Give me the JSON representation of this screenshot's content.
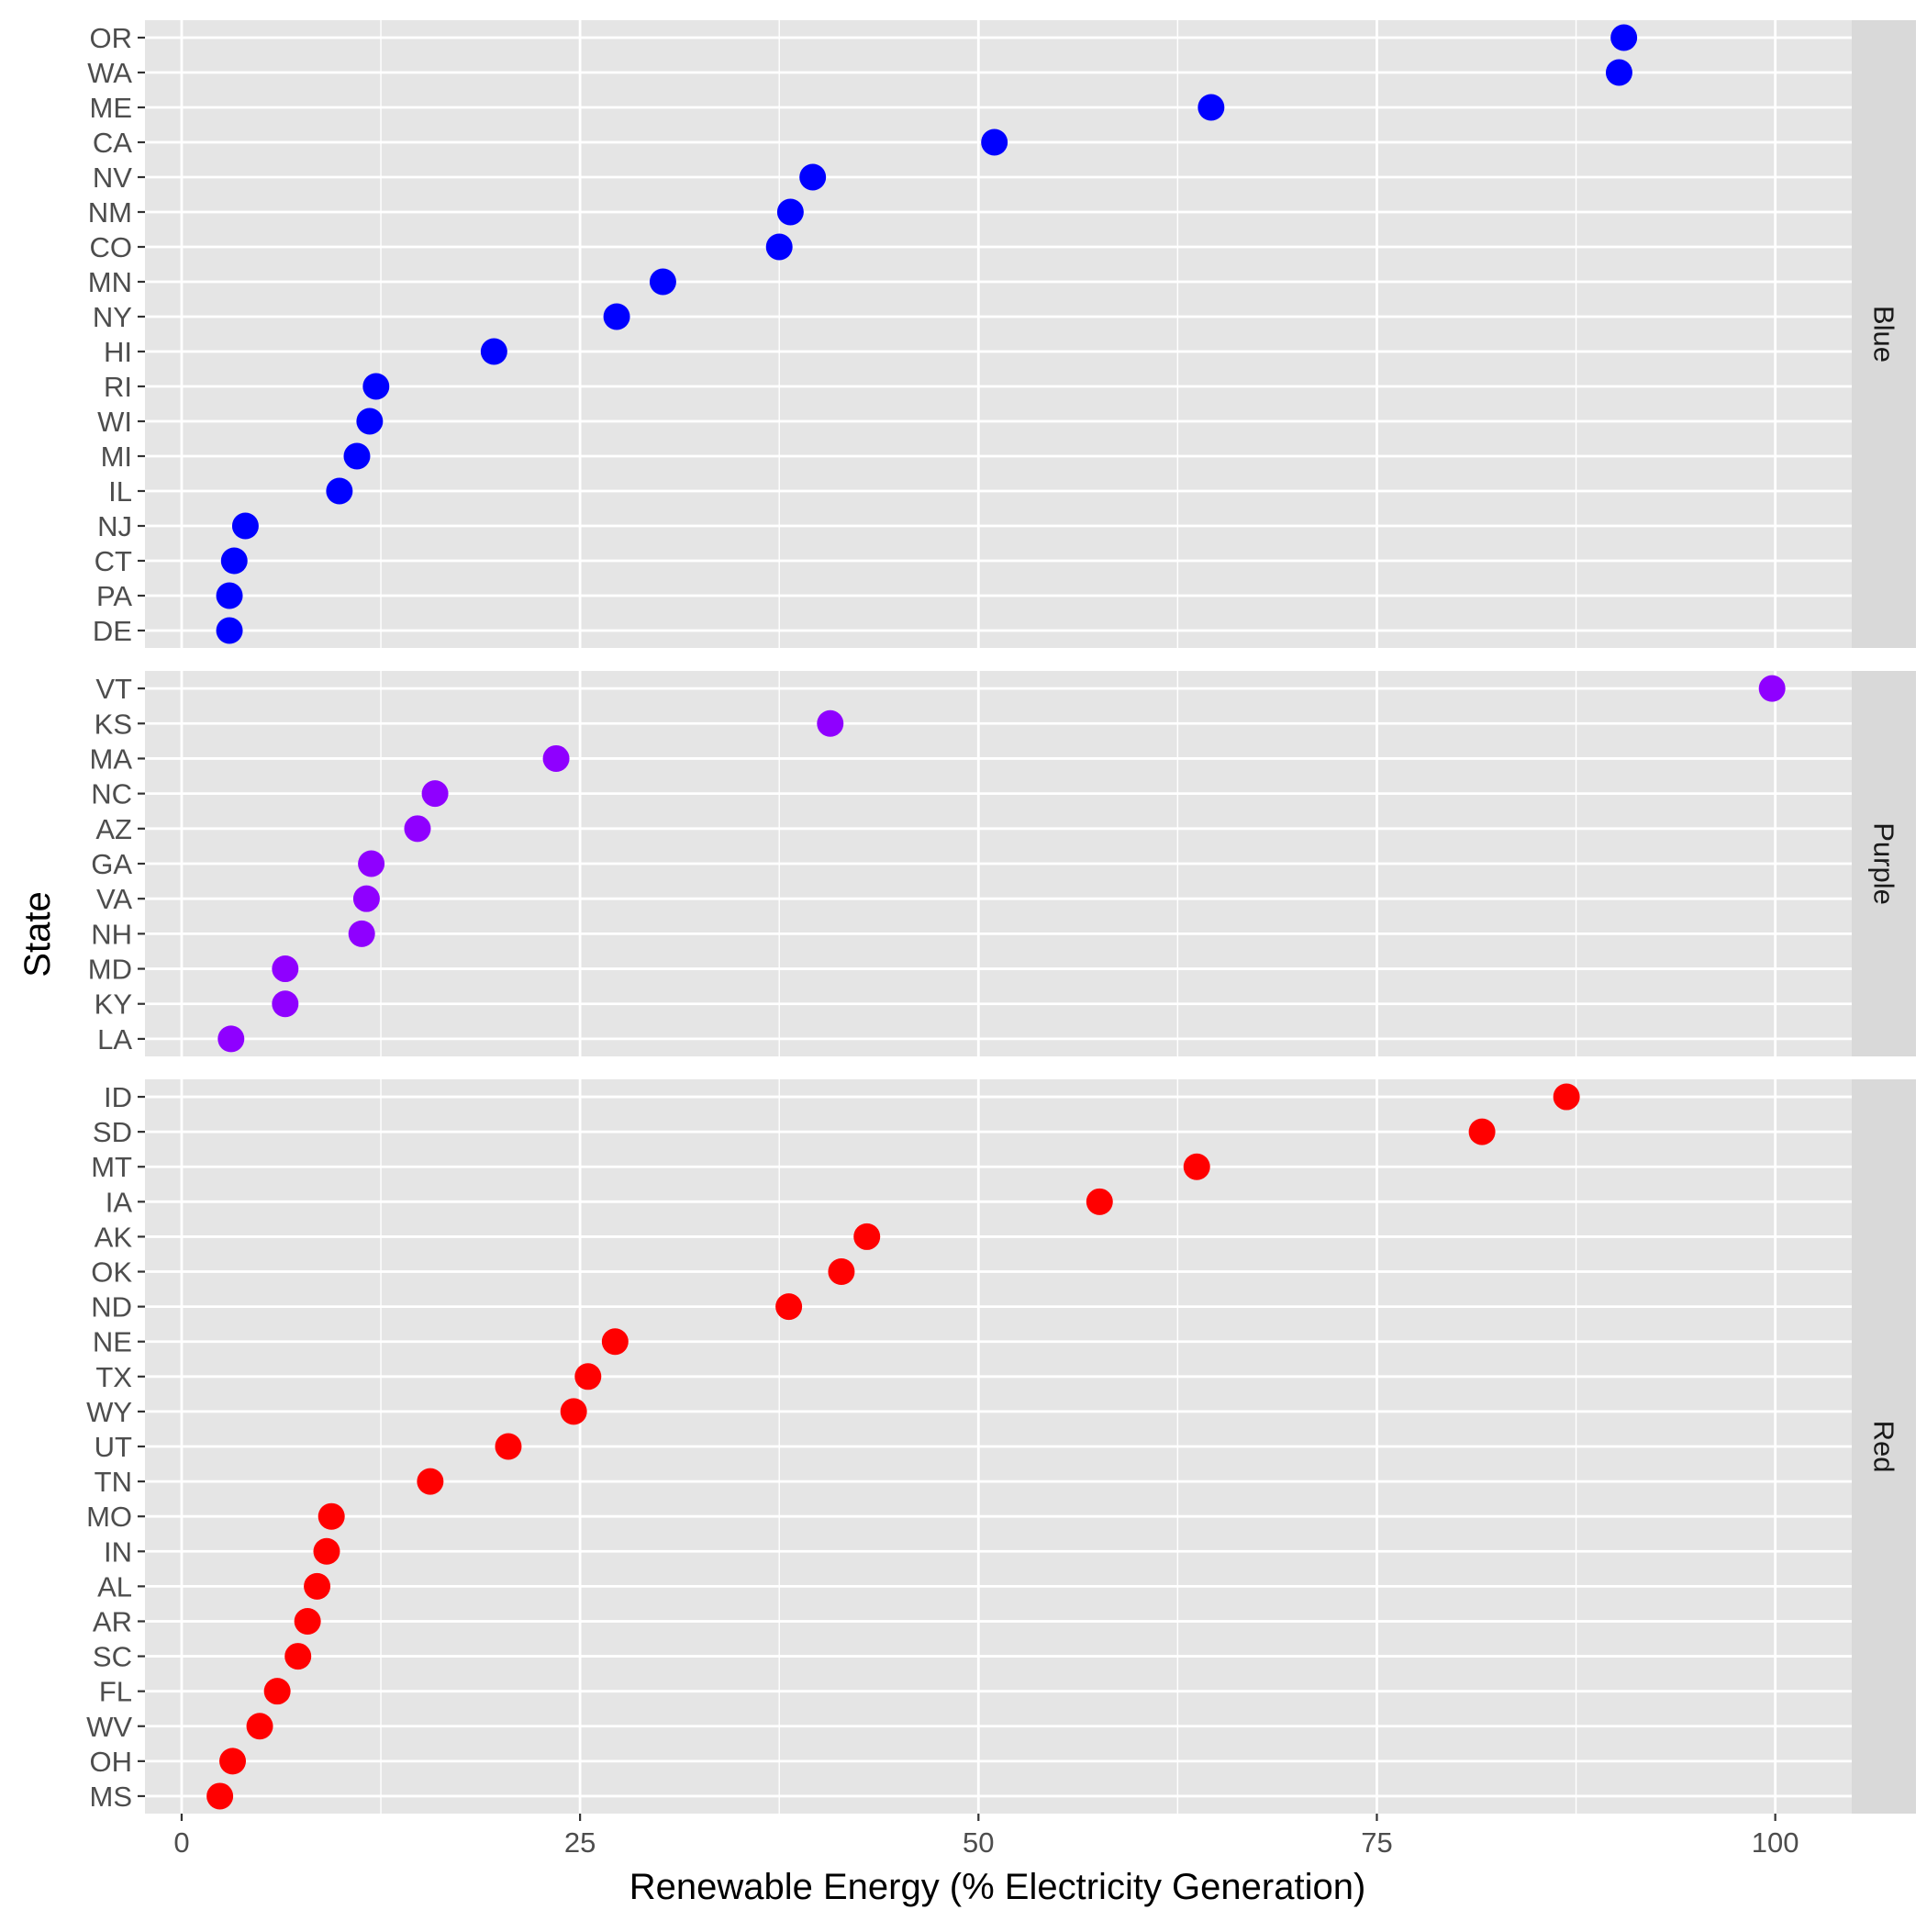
{
  "chart_data": {
    "type": "scatter",
    "xlabel": "Renewable Energy (% Electricity Generation)",
    "ylabel": "State",
    "xlim": [
      -2.3,
      104.8
    ],
    "x_ticks": [
      "0",
      "25",
      "50",
      "75",
      "100"
    ],
    "x_tick_values": [
      0,
      25,
      50,
      75,
      100
    ],
    "grid": true,
    "legend": "none",
    "facet_layout": "rows",
    "panel_background": "#e5e5e5",
    "strip_background": "#d9d9d9",
    "grid_color": "#ffffff",
    "panels": [
      {
        "name": "Blue",
        "color": "#0000ff",
        "states": [
          "OR",
          "WA",
          "ME",
          "CA",
          "NV",
          "NM",
          "CO",
          "MN",
          "NY",
          "HI",
          "RI",
          "WI",
          "MI",
          "IL",
          "NJ",
          "CT",
          "PA",
          "DE"
        ],
        "values": [
          90.5,
          90.2,
          64.6,
          51.0,
          39.6,
          38.2,
          37.5,
          30.2,
          27.3,
          19.6,
          12.2,
          11.8,
          11.0,
          9.9,
          4.0,
          3.3,
          3.0,
          3.0
        ]
      },
      {
        "name": "Purple",
        "color": "#8f00ff",
        "states": [
          "VT",
          "KS",
          "MA",
          "NC",
          "AZ",
          "GA",
          "VA",
          "NH",
          "MD",
          "KY",
          "LA"
        ],
        "values": [
          99.8,
          40.7,
          23.5,
          15.9,
          14.8,
          11.9,
          11.6,
          11.3,
          6.5,
          6.5,
          3.1
        ]
      },
      {
        "name": "Red",
        "color": "#ff0000",
        "states": [
          "ID",
          "SD",
          "MT",
          "IA",
          "AK",
          "OK",
          "ND",
          "NE",
          "TX",
          "WY",
          "UT",
          "TN",
          "MO",
          "IN",
          "AL",
          "AR",
          "SC",
          "FL",
          "WV",
          "OH",
          "MS"
        ],
        "values": [
          86.9,
          81.6,
          63.7,
          57.6,
          43.0,
          41.4,
          38.1,
          27.2,
          25.5,
          24.6,
          20.5,
          15.6,
          9.4,
          9.1,
          8.5,
          7.9,
          7.3,
          6.0,
          4.9,
          3.2,
          2.4
        ]
      }
    ]
  }
}
